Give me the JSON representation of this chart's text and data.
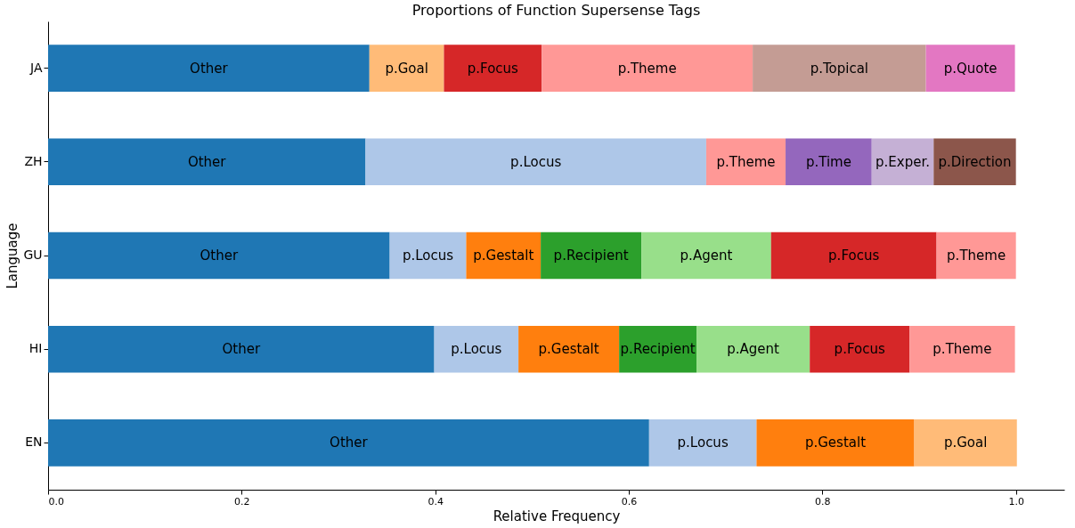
{
  "chart_data": {
    "type": "bar",
    "orientation": "horizontal",
    "stacked": true,
    "title": "Proportions of Function Supersense Tags",
    "xlabel": "Relative Frequency",
    "ylabel": "Language",
    "categories": [
      "JA",
      "ZH",
      "GU",
      "HI",
      "EN"
    ],
    "series": [
      {
        "name": "Other",
        "color": "#1f77b4",
        "values": [
          0.332,
          0.328,
          0.353,
          0.399,
          0.621
        ]
      },
      {
        "name": "p.Locus",
        "color": "#aec7e8",
        "values": [
          null,
          0.352,
          0.079,
          0.087,
          0.111
        ]
      },
      {
        "name": "p.Gestalt",
        "color": "#ff7f0e",
        "values": [
          null,
          null,
          0.077,
          0.104,
          0.163
        ]
      },
      {
        "name": "p.Recipient",
        "color": "#2ca02c",
        "values": [
          null,
          null,
          0.104,
          0.08,
          null
        ]
      },
      {
        "name": "p.Agent",
        "color": "#98df8a",
        "values": [
          null,
          null,
          0.134,
          0.117,
          null
        ]
      },
      {
        "name": "p.Goal",
        "color": "#ffbb78",
        "values": [
          0.077,
          null,
          null,
          null,
          0.106
        ]
      },
      {
        "name": "p.Focus",
        "color": "#d62728",
        "values": [
          0.101,
          null,
          0.171,
          0.103,
          null
        ]
      },
      {
        "name": "p.Theme",
        "color": "#ff9896",
        "values": [
          0.218,
          0.082,
          0.082,
          0.109,
          null
        ]
      },
      {
        "name": "p.Topical",
        "color": "#c49c94",
        "values": [
          0.179,
          null,
          null,
          null,
          null
        ]
      },
      {
        "name": "p.Time",
        "color": "#9467bd",
        "values": [
          null,
          0.089,
          null,
          null,
          null
        ]
      },
      {
        "name": "p.Exper.",
        "color": "#c5b0d5",
        "values": [
          null,
          0.064,
          null,
          null,
          null
        ]
      },
      {
        "name": "p.Direction",
        "color": "#8c564b",
        "values": [
          null,
          0.085,
          null,
          null,
          null
        ]
      },
      {
        "name": "p.Quote",
        "color": "#e377c2",
        "values": [
          0.092,
          null,
          null,
          null,
          null
        ]
      }
    ],
    "xlim": [
      0,
      1.05
    ],
    "xticks": [
      {
        "value": 0,
        "label": "0.0"
      },
      0.2,
      0.4,
      0.6,
      0.8,
      {
        "value": 1,
        "label": "1.0"
      }
    ],
    "grid": false
  }
}
